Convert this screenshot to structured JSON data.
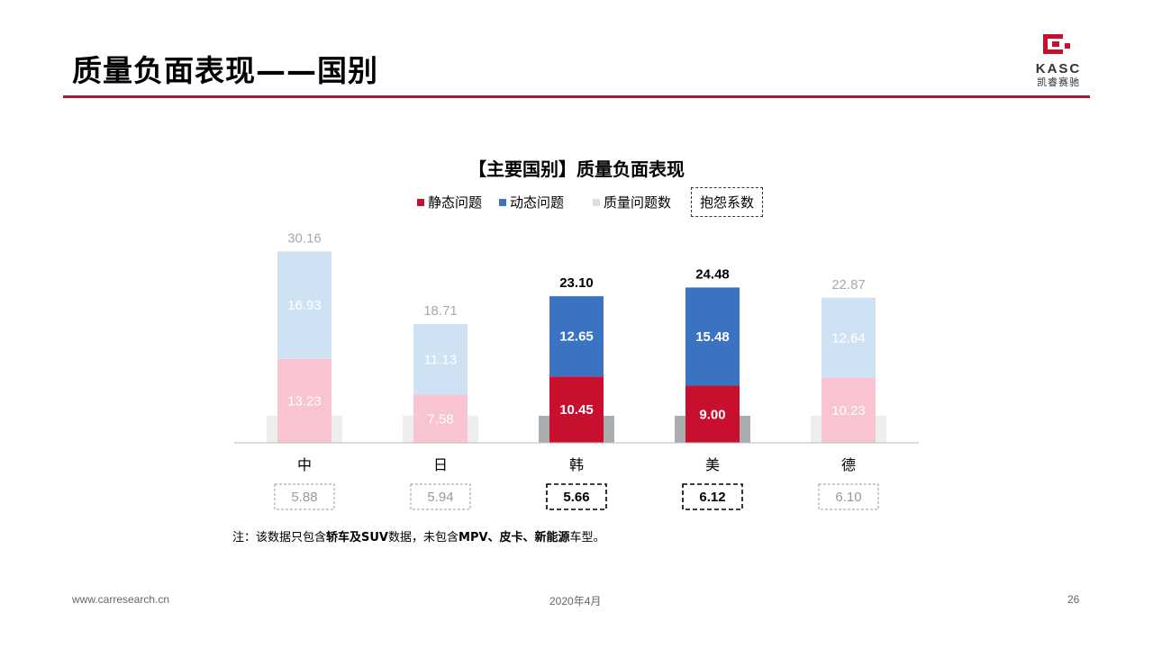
{
  "page": {
    "title": "质量负面表现——国别",
    "logo_text": "KASC",
    "logo_sub": "凯睿赛驰",
    "footer_left": "www.carresearch.cn",
    "footer_center": "2020年4月",
    "page_number": "26",
    "note_prefix": "注：该数据只包含",
    "note_b1": "轿车及SUV",
    "note_mid": "数据，未包含",
    "note_b2": "MPV、皮卡、新能源",
    "note_suffix": "车型。"
  },
  "colors": {
    "brand": "#a6192e",
    "static_strong": "#c8102e",
    "dynamic_strong": "#3a73c1",
    "static_light": "#f9c4d2",
    "dynamic_light": "#cfe2f4",
    "count_strong": "#a9adb0",
    "count_light": "#eeeeee"
  },
  "chart_data": {
    "type": "bar",
    "stacked": true,
    "title": "【主要国别】质量负面表现",
    "legend": {
      "static": "静态问题",
      "dynamic": "动态问题",
      "count": "质量问题数",
      "complaint": "抱怨系数"
    },
    "categories": [
      "中",
      "日",
      "韩",
      "美",
      "德"
    ],
    "highlighted": [
      false,
      false,
      true,
      true,
      false
    ],
    "series": [
      {
        "name": "静态问题",
        "values": [
          13.23,
          7.58,
          10.45,
          9.0,
          10.23
        ]
      },
      {
        "name": "动态问题",
        "values": [
          16.93,
          11.13,
          12.65,
          15.48,
          12.64
        ]
      }
    ],
    "totals": [
      30.16,
      18.71,
      23.1,
      24.48,
      22.87
    ],
    "complaint_coefficient": [
      5.88,
      5.94,
      5.66,
      6.12,
      6.1
    ],
    "value_labels": {
      "static": [
        "13.23",
        "7.58",
        "10.45",
        "9.00",
        "10.23"
      ],
      "dynamic": [
        "16.93",
        "11.13",
        "12.65",
        "15.48",
        "12.64"
      ],
      "totals": [
        "30.16",
        "18.71",
        "23.10",
        "24.48",
        "22.87"
      ],
      "complaint": [
        "5.88",
        "5.94",
        "5.66",
        "6.12",
        "6.10"
      ]
    },
    "ylim": [
      0,
      33
    ],
    "grid": false
  }
}
